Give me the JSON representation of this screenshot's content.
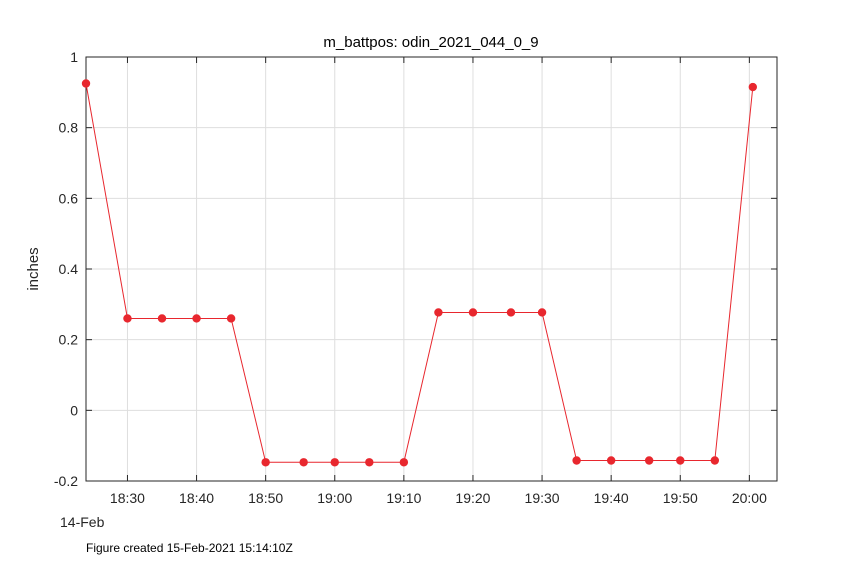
{
  "chart_data": {
    "type": "line",
    "title": "m_battpos: odin_2021_044_0_9",
    "xlabel": "",
    "ylabel": "inches",
    "date_label": "14-Feb",
    "x_axis": {
      "type": "time",
      "min": "18:24",
      "max": "20:04",
      "ticks": [
        "18:30",
        "18:40",
        "18:50",
        "19:00",
        "19:10",
        "19:20",
        "19:30",
        "19:40",
        "19:50",
        "20:00"
      ]
    },
    "ylim": [
      -0.2,
      1
    ],
    "yticks": [
      "1",
      "0.8",
      "0.6",
      "0.4",
      "0.2",
      "0",
      "-0.2"
    ],
    "grid": true,
    "series": [
      {
        "color": "#e8272e",
        "x": [
          "18:24",
          "18:30",
          "18:35",
          "18:40",
          "18:45",
          "18:50",
          "18:55:30",
          "19:00",
          "19:05",
          "19:10",
          "19:15",
          "19:20",
          "19:25:30",
          "19:30",
          "19:35",
          "19:40",
          "19:45:30",
          "19:50",
          "19:55",
          "20:00:30"
        ],
        "y": [
          0.925,
          0.26,
          0.26,
          0.26,
          0.26,
          -0.147,
          -0.147,
          -0.147,
          -0.147,
          -0.147,
          0.277,
          0.277,
          0.277,
          0.277,
          -0.142,
          -0.142,
          -0.142,
          -0.142,
          -0.142,
          0.915
        ]
      }
    ]
  },
  "footer": "Figure created 15-Feb-2021 15:14:10Z"
}
